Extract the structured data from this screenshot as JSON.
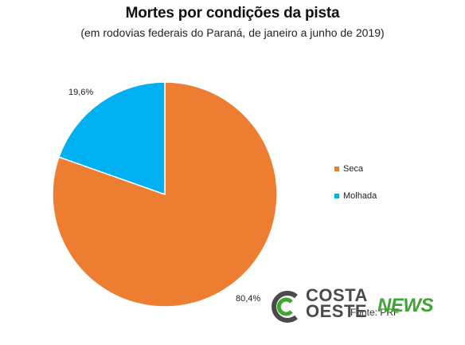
{
  "chart_data": {
    "type": "pie",
    "title": "Mortes por condições da pista",
    "subtitle": "(em rodovias federais do Paraná, de janeiro a junho de 2019)",
    "slices": [
      {
        "label": "Seca",
        "value": 80.4,
        "value_label": "80,4%",
        "color": "#ED7D31"
      },
      {
        "label": "Molhada",
        "value": 19.6,
        "value_label": "19,6%",
        "color": "#00B0F0"
      }
    ],
    "legend_position": "right"
  },
  "source": "Fonte: PRF",
  "logo": {
    "line1": "COSTA",
    "line2": "OESTE",
    "news": "NEWS"
  }
}
